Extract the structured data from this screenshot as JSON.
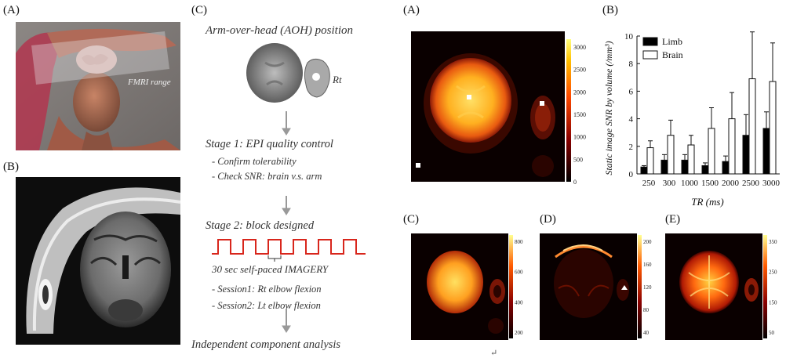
{
  "labels": {
    "left_a": "(A)",
    "left_b": "(B)",
    "flow_c": "(C)",
    "right_a": "(A)",
    "right_b": "(B)",
    "right_c": "(C)",
    "right_d": "(D)",
    "right_e": "(E)"
  },
  "left_a": {
    "overlay_text": "FMRI range"
  },
  "flowchart": {
    "title": "Arm-over-head (AOH) position",
    "rt_label": "Rt",
    "stage1": "Stage 1: EPI quality control",
    "stage1_items": [
      "- Confirm tolerability",
      "- Check SNR: brain v.s. arm"
    ],
    "stage2": "Stage 2: block designed",
    "imagery": "30 sec self-paced IMAGERY",
    "sessions": [
      "- Session1: Rt elbow flexion",
      "- Session2: Lt elbow flexion"
    ],
    "final": "Independent component analysis",
    "accent_color": "#d8261c"
  },
  "colorbars": {
    "a": [
      "3000",
      "2500",
      "2000",
      "1500",
      "1000",
      "500",
      "0"
    ],
    "c": [
      "800",
      "600",
      "400",
      "200"
    ],
    "d": [
      "200",
      "160",
      "120",
      "80",
      "40"
    ],
    "e": [
      "350",
      "250",
      "150",
      "50"
    ]
  },
  "stray_mark": "↵",
  "chart_data": {
    "type": "bar",
    "categories": [
      "250",
      "300",
      "1000",
      "1500",
      "2000",
      "2500",
      "3000"
    ],
    "xlabel": "TR (ms)",
    "ylabel": "Static image SNR by volume (/mm³)",
    "ylim": [
      0,
      10
    ],
    "yticks": [
      "0",
      "2",
      "4",
      "6",
      "8",
      "10"
    ],
    "legend_position": "top-left",
    "series": [
      {
        "name": "Limb",
        "color": "#000000",
        "values": [
          0.5,
          1.0,
          1.0,
          0.6,
          0.9,
          2.8,
          3.3
        ],
        "errors": [
          0.1,
          0.4,
          0.4,
          0.2,
          0.4,
          1.5,
          1.2
        ]
      },
      {
        "name": "Brain",
        "color": "#ffffff",
        "values": [
          1.9,
          2.8,
          2.1,
          3.3,
          4.0,
          6.9,
          6.7
        ],
        "errors": [
          0.5,
          1.1,
          0.7,
          1.5,
          1.9,
          3.4,
          2.8
        ]
      }
    ]
  }
}
